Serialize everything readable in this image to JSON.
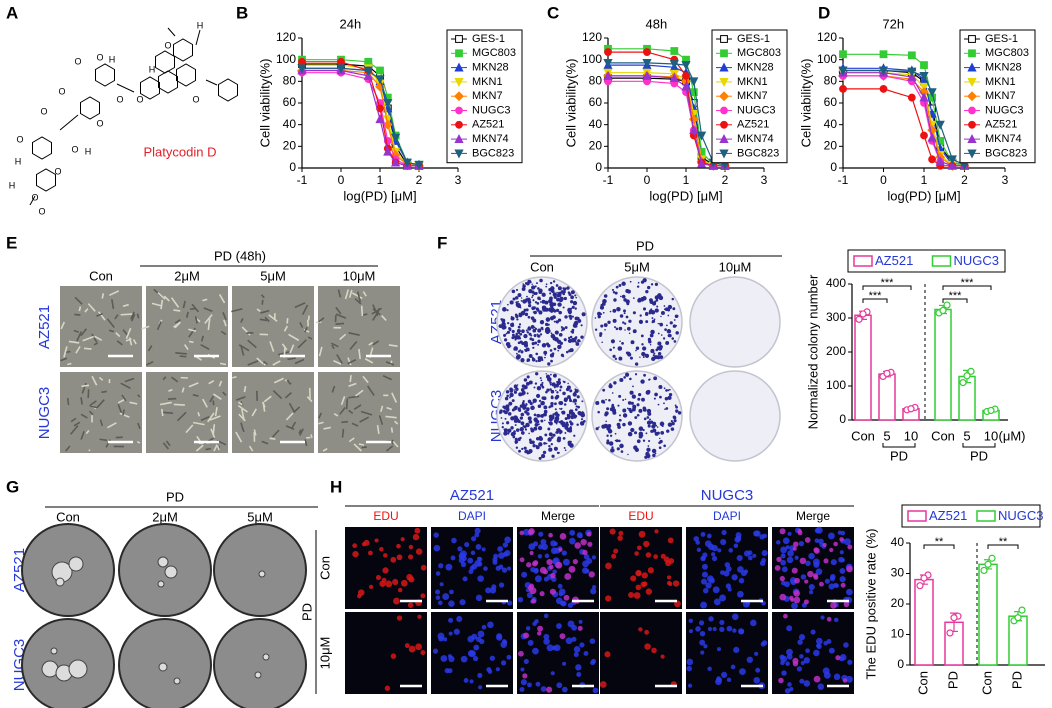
{
  "panel_letters": [
    "A",
    "B",
    "C",
    "D",
    "E",
    "F",
    "G",
    "H"
  ],
  "structure": {
    "name": "Platycodin D",
    "atoms": [
      "H",
      "O",
      "H",
      "O",
      "O",
      "O",
      "O",
      "O",
      "O",
      "O",
      "O",
      "O",
      "H",
      "O",
      "H",
      "O",
      "H",
      "O",
      "H",
      "O"
    ]
  },
  "panel_e": {
    "header": "PD (48h)",
    "columns": [
      "Con",
      "2μM",
      "5μM",
      "10μM"
    ],
    "rows": [
      "AZ521",
      "NUGC3"
    ]
  },
  "panel_f_images": {
    "header": "PD",
    "columns": [
      "Con",
      "5μM",
      "10μM"
    ],
    "rows": [
      "AZ521",
      "NUGC3"
    ]
  },
  "panel_g": {
    "header": "PD",
    "columns": [
      "Con",
      "2μM",
      "5μM"
    ],
    "rows": [
      "AZ521",
      "NUGC3"
    ]
  },
  "panel_h_images": {
    "groups": [
      "AZ521",
      "NUGC3"
    ],
    "channels": [
      "EDU",
      "DAPI",
      "Merge"
    ],
    "row_header": "PD",
    "rows": [
      "Con",
      "10μM"
    ]
  },
  "chart_data": [
    {
      "type": "line",
      "title": "24h",
      "xlabel": "log(PD) [μM]",
      "ylabel": "Cell viability(%)",
      "x": [
        -1,
        0,
        0.7,
        1,
        1.2,
        1.4,
        1.7,
        2
      ],
      "xlim": [
        -1,
        3
      ],
      "xticks": [
        -1,
        0,
        1,
        2,
        3
      ],
      "ylim": [
        0,
        120
      ],
      "yticks": [
        0,
        20,
        40,
        60,
        80,
        100,
        120
      ],
      "series": [
        {
          "name": "GES-1",
          "color": "#000000",
          "marker": "square-open",
          "values": [
            96,
            96,
            94,
            85,
            55,
            20,
            3,
            2
          ]
        },
        {
          "name": "MGC803",
          "color": "#33cc33",
          "marker": "square",
          "values": [
            100,
            100,
            98,
            90,
            65,
            30,
            5,
            3
          ]
        },
        {
          "name": "MKN28",
          "color": "#1f3fd8",
          "marker": "triangle",
          "values": [
            92,
            92,
            90,
            80,
            55,
            25,
            5,
            3
          ]
        },
        {
          "name": "MKN1",
          "color": "#e6d800",
          "marker": "triangle-down",
          "values": [
            95,
            95,
            92,
            78,
            45,
            15,
            3,
            2
          ]
        },
        {
          "name": "MKN7",
          "color": "#ff8000",
          "marker": "diamond",
          "values": [
            90,
            90,
            88,
            75,
            40,
            12,
            3,
            2
          ]
        },
        {
          "name": "NUGC3",
          "color": "#ff33cc",
          "marker": "circle",
          "values": [
            88,
            88,
            82,
            60,
            25,
            8,
            2,
            2
          ]
        },
        {
          "name": "AZ521",
          "color": "#ee1111",
          "marker": "circle",
          "values": [
            98,
            98,
            90,
            55,
            18,
            5,
            2,
            2
          ]
        },
        {
          "name": "MKN74",
          "color": "#9933cc",
          "marker": "triangle",
          "values": [
            90,
            90,
            85,
            45,
            15,
            5,
            2,
            2
          ]
        },
        {
          "name": "BGC823",
          "color": "#1f5f7f",
          "marker": "triangle-down",
          "values": [
            92,
            92,
            90,
            82,
            60,
            28,
            5,
            3
          ]
        }
      ]
    },
    {
      "type": "line",
      "title": "48h",
      "xlabel": "log(PD) [μM]",
      "ylabel": "Cell viability(%)",
      "x": [
        -1,
        0,
        0.7,
        1,
        1.2,
        1.4,
        1.7,
        2
      ],
      "xlim": [
        -1,
        3
      ],
      "xticks": [
        -1,
        0,
        1,
        2,
        3
      ],
      "ylim": [
        0,
        120
      ],
      "yticks": [
        0,
        20,
        40,
        60,
        80,
        100,
        120
      ],
      "series": [
        {
          "name": "GES-1",
          "color": "#000000",
          "marker": "square-open",
          "values": [
            83,
            83,
            82,
            80,
            60,
            10,
            3,
            2
          ]
        },
        {
          "name": "MGC803",
          "color": "#33cc33",
          "marker": "square",
          "values": [
            110,
            110,
            108,
            100,
            70,
            15,
            3,
            2
          ]
        },
        {
          "name": "MKN28",
          "color": "#1f3fd8",
          "marker": "triangle",
          "values": [
            95,
            95,
            93,
            88,
            55,
            8,
            2,
            2
          ]
        },
        {
          "name": "MKN1",
          "color": "#e6d800",
          "marker": "triangle-down",
          "values": [
            88,
            88,
            87,
            82,
            50,
            8,
            2,
            2
          ]
        },
        {
          "name": "MKN7",
          "color": "#ff8000",
          "marker": "diamond",
          "values": [
            85,
            85,
            84,
            80,
            45,
            6,
            2,
            2
          ]
        },
        {
          "name": "NUGC3",
          "color": "#ff33cc",
          "marker": "circle",
          "values": [
            80,
            80,
            78,
            70,
            35,
            5,
            2,
            2
          ]
        },
        {
          "name": "AZ521",
          "color": "#ee1111",
          "marker": "circle",
          "values": [
            107,
            107,
            100,
            85,
            30,
            5,
            2,
            2
          ]
        },
        {
          "name": "MKN74",
          "color": "#9933cc",
          "marker": "triangle",
          "values": [
            85,
            85,
            83,
            75,
            35,
            4,
            2,
            2
          ]
        },
        {
          "name": "BGC823",
          "color": "#1f5f7f",
          "marker": "triangle-down",
          "values": [
            97,
            97,
            96,
            95,
            80,
            30,
            5,
            3
          ]
        }
      ]
    },
    {
      "type": "line",
      "title": "72h",
      "xlabel": "log(PD) [μM]",
      "ylabel": "Cell viability(%)",
      "x": [
        -1,
        0,
        0.7,
        1,
        1.2,
        1.4,
        1.7,
        2
      ],
      "xlim": [
        -1,
        3
      ],
      "xticks": [
        -1,
        0,
        1,
        2,
        3
      ],
      "ylim": [
        0,
        120
      ],
      "yticks": [
        0,
        20,
        40,
        60,
        80,
        100,
        120
      ],
      "series": [
        {
          "name": "GES-1",
          "color": "#000000",
          "marker": "square-open",
          "values": [
            90,
            90,
            88,
            80,
            55,
            20,
            5,
            3
          ]
        },
        {
          "name": "MGC803",
          "color": "#33cc33",
          "marker": "square",
          "values": [
            105,
            105,
            104,
            95,
            65,
            25,
            5,
            3
          ]
        },
        {
          "name": "MKN28",
          "color": "#1f3fd8",
          "marker": "triangle",
          "values": [
            92,
            92,
            90,
            82,
            50,
            18,
            3,
            2
          ]
        },
        {
          "name": "MKN1",
          "color": "#e6d800",
          "marker": "triangle-down",
          "values": [
            88,
            88,
            86,
            75,
            40,
            12,
            3,
            2
          ]
        },
        {
          "name": "MKN7",
          "color": "#ff8000",
          "marker": "diamond",
          "values": [
            85,
            85,
            82,
            70,
            35,
            10,
            2,
            2
          ]
        },
        {
          "name": "NUGC3",
          "color": "#ff33cc",
          "marker": "circle",
          "values": [
            85,
            85,
            80,
            60,
            25,
            6,
            2,
            2
          ]
        },
        {
          "name": "AZ521",
          "color": "#ee1111",
          "marker": "circle",
          "values": [
            73,
            73,
            65,
            30,
            8,
            2,
            2,
            2
          ]
        },
        {
          "name": "MKN74",
          "color": "#9933cc",
          "marker": "triangle",
          "values": [
            88,
            88,
            84,
            65,
            28,
            6,
            2,
            2
          ]
        },
        {
          "name": "BGC823",
          "color": "#1f5f7f",
          "marker": "triangle-down",
          "values": [
            90,
            90,
            89,
            85,
            70,
            40,
            8,
            3
          ]
        }
      ]
    },
    {
      "type": "bar",
      "ylabel": "Normalized colony number",
      "categories": [
        "Con",
        "5",
        "10"
      ],
      "unit": "(μM)",
      "group_label": "PD",
      "ylim": [
        0,
        400
      ],
      "yticks": [
        0,
        100,
        200,
        300,
        400
      ],
      "series": [
        {
          "name": "AZ521",
          "color": "#e6399b",
          "values": [
            308,
            135,
            33
          ],
          "errors": [
            12,
            8,
            4
          ],
          "points": [
            [
              296,
              318,
              312
            ],
            [
              128,
              140,
              137
            ],
            [
              30,
              37,
              33
            ]
          ]
        },
        {
          "name": "NUGC3",
          "color": "#33cc33",
          "values": [
            325,
            128,
            28
          ],
          "errors": [
            12,
            18,
            4
          ],
          "points": [
            [
              315,
              338,
              322
            ],
            [
              110,
              143,
              130
            ],
            [
              25,
              32,
              28
            ]
          ]
        }
      ],
      "significance": [
        [
          "***",
          "***"
        ],
        [
          "***",
          "***"
        ]
      ]
    },
    {
      "type": "bar",
      "ylabel": "The EDU positive rate (%)",
      "categories": [
        "Con",
        "PD"
      ],
      "ylim": [
        0,
        40
      ],
      "yticks": [
        0,
        10,
        20,
        30,
        40
      ],
      "series": [
        {
          "name": "AZ521",
          "color": "#e6399b",
          "values": [
            28,
            14
          ],
          "errors": [
            1.5,
            3
          ],
          "points": [
            [
              26,
              29.5,
              28.5
            ],
            [
              10.5,
              16,
              15.5
            ]
          ]
        },
        {
          "name": "NUGC3",
          "color": "#33cc33",
          "values": [
            33,
            16
          ],
          "errors": [
            1.5,
            1.5
          ],
          "points": [
            [
              31,
              35,
              33
            ],
            [
              14.5,
              18,
              15.5
            ]
          ]
        }
      ],
      "significance": [
        [
          "**"
        ],
        [
          "**"
        ]
      ]
    }
  ]
}
